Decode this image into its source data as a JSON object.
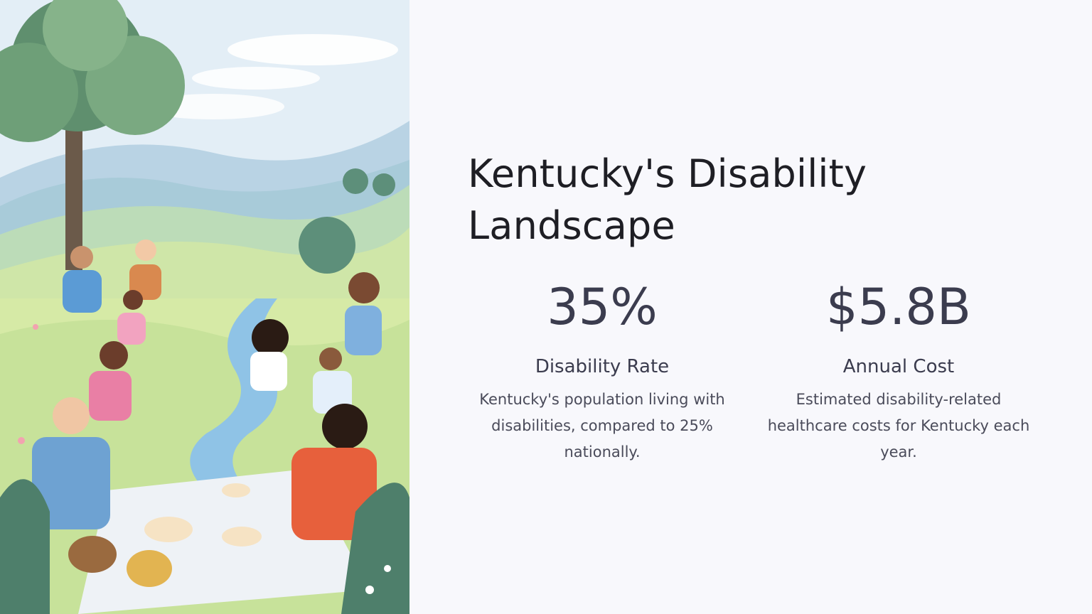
{
  "slide": {
    "title": "Kentucky's Disability Landscape",
    "stats": [
      {
        "value": "35%",
        "label": "Disability Rate",
        "description": "Kentucky's population living with disabilities, compared to 25% nationally."
      },
      {
        "value": "$5.8B",
        "label": "Annual Cost",
        "description": "Estimated disability-related healthcare costs for Kentucky each year."
      }
    ]
  },
  "illustration": {
    "subject": "picnic-illustration"
  },
  "colors": {
    "background": "#f8f8fc",
    "text_primary": "#1e1e24",
    "text_stat": "#3b3c4e",
    "text_body": "#4a4b5a"
  }
}
